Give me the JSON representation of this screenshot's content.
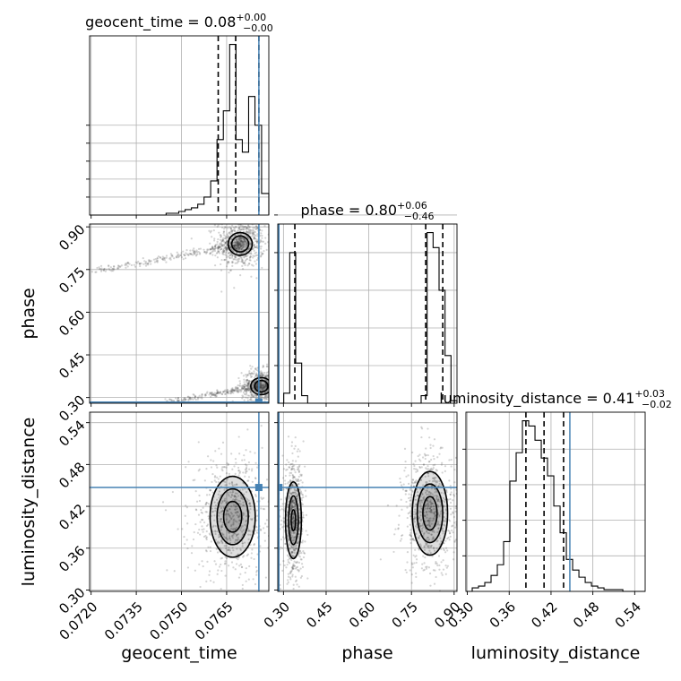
{
  "chart_data": {
    "type": "corner",
    "parameters": [
      {
        "name": "geocent_time",
        "xlabel": "geocent_time",
        "range": [
          0.07195,
          0.0779
        ],
        "ticks": [
          0.072,
          0.0735,
          0.075,
          0.0765
        ],
        "tick_labels": [
          "0.0720",
          "0.0735",
          "0.0750",
          "0.0765"
        ],
        "title_main": "geocent_time = 0.08",
        "title_sup": "+0.00",
        "title_sub": "−0.00",
        "quantiles": [
          0.07622,
          0.0768,
          0.07757
        ],
        "truth": 0.07757,
        "hist_edges": [
          0.07195,
          0.07216,
          0.07237,
          0.07258,
          0.07279,
          0.07301,
          0.07322,
          0.07343,
          0.07364,
          0.07385,
          0.07406,
          0.07427,
          0.07449,
          0.0747,
          0.07491,
          0.07512,
          0.07533,
          0.07554,
          0.07575,
          0.07597,
          0.07618,
          0.07639,
          0.0766,
          0.07681,
          0.07702,
          0.07723,
          0.07744,
          0.07766,
          0.0779
        ],
        "hist_counts": [
          0,
          0,
          0,
          0,
          0,
          0,
          0,
          0,
          0,
          0,
          0,
          0,
          1,
          1,
          2,
          3,
          4,
          6,
          10,
          19,
          42,
          58,
          95,
          42,
          35,
          66,
          50,
          12
        ],
        "hist_ticks": [
          10,
          20,
          30,
          40,
          50
        ]
      },
      {
        "name": "phase",
        "xlabel": "phase",
        "ylabel": "phase",
        "range": [
          0.28,
          0.91
        ],
        "ticks": [
          0.3,
          0.45,
          0.6,
          0.75,
          0.9
        ],
        "tick_labels": [
          "0.30",
          "0.45",
          "0.60",
          "0.75",
          "0.90"
        ],
        "title_main": "phase = 0.80",
        "title_sup": "+0.06",
        "title_sub": "−0.46",
        "quantiles": [
          0.34,
          0.8,
          0.86
        ],
        "truth": 0.284,
        "hist_edges": [
          0.28,
          0.301,
          0.322,
          0.343,
          0.364,
          0.385,
          0.406,
          0.427,
          0.448,
          0.469,
          0.49,
          0.511,
          0.532,
          0.553,
          0.574,
          0.595,
          0.616,
          0.637,
          0.658,
          0.679,
          0.7,
          0.721,
          0.742,
          0.763,
          0.784,
          0.805,
          0.826,
          0.847,
          0.868,
          0.889,
          0.91
        ],
        "hist_counts": [
          0,
          4,
          60,
          16,
          3,
          0,
          0,
          0,
          0,
          0,
          0,
          0,
          0,
          0,
          0,
          0,
          0,
          0,
          0,
          0,
          0,
          0,
          0,
          0,
          3,
          68,
          62,
          45,
          19,
          1
        ],
        "hist_ticks": [
          15,
          30,
          45,
          60,
          75
        ]
      },
      {
        "name": "luminosity_distance",
        "xlabel": "luminosity_distance",
        "ylabel": "luminosity_distance",
        "range": [
          0.298,
          0.555
        ],
        "ticks": [
          0.3,
          0.36,
          0.42,
          0.48,
          0.54
        ],
        "tick_labels": [
          "0.30",
          "0.36",
          "0.42",
          "0.48",
          "0.54"
        ],
        "title_main": "luminosity_distance = 0.41",
        "title_sup": "+0.03",
        "title_sub": "−0.02",
        "quantiles": [
          0.384,
          0.41,
          0.438
        ],
        "truth": 0.447,
        "hist_edges": [
          0.298,
          0.307,
          0.316,
          0.325,
          0.334,
          0.343,
          0.352,
          0.361,
          0.37,
          0.379,
          0.388,
          0.397,
          0.406,
          0.415,
          0.424,
          0.433,
          0.442,
          0.451,
          0.46,
          0.469,
          0.478,
          0.487,
          0.496,
          0.505,
          0.514,
          0.523,
          0.532,
          0.541,
          0.55,
          0.555
        ],
        "hist_counts": [
          0,
          2,
          3,
          5,
          9,
          15,
          28,
          62,
          78,
          96,
          93,
          85,
          75,
          65,
          48,
          33,
          18,
          12,
          8,
          5,
          3,
          2,
          1,
          1,
          1,
          0,
          0,
          0,
          0
        ],
        "hist_ticks": [
          20,
          40,
          60,
          80
        ]
      }
    ],
    "truths": [
      0.07757,
      0.284,
      0.447
    ],
    "panels_2d": [
      {
        "x": "geocent_time",
        "y": "phase",
        "modes": [
          {
            "cx": 0.07695,
            "cy": 0.84,
            "sx": 0.00025,
            "sy": 0.025,
            "tail_to": [
              0.072,
              0.74
            ]
          },
          {
            "cx": 0.07765,
            "cy": 0.34,
            "sx": 0.0002,
            "sy": 0.018,
            "tail_to": [
              0.0745,
              0.285
            ]
          }
        ],
        "contours": [
          {
            "mode": 0,
            "rx": 0.0004,
            "ry": 0.04
          },
          {
            "mode": 0,
            "rx": 0.00028,
            "ry": 0.028
          },
          {
            "mode": 1,
            "rx": 0.00035,
            "ry": 0.03
          },
          {
            "mode": 1,
            "rx": 0.00022,
            "ry": 0.02
          }
        ]
      },
      {
        "x": "geocent_time",
        "y": "luminosity_distance",
        "modes": [
          {
            "cx": 0.0767,
            "cy": 0.405,
            "sx": 0.00045,
            "sy": 0.028
          }
        ],
        "contours": [
          {
            "mode": 0,
            "rx": 0.00075,
            "ry": 0.058
          },
          {
            "mode": 0,
            "rx": 0.00052,
            "ry": 0.04
          },
          {
            "mode": 0,
            "rx": 0.0003,
            "ry": 0.022
          }
        ]
      },
      {
        "x": "phase",
        "y": "luminosity_distance",
        "modes": [
          {
            "cx": 0.335,
            "cy": 0.4,
            "sx": 0.012,
            "sy": 0.025
          },
          {
            "cx": 0.815,
            "cy": 0.41,
            "sx": 0.03,
            "sy": 0.028
          }
        ],
        "contours": [
          {
            "mode": 0,
            "rx": 0.028,
            "ry": 0.055
          },
          {
            "mode": 0,
            "rx": 0.017,
            "ry": 0.035
          },
          {
            "mode": 0,
            "rx": 0.008,
            "ry": 0.015
          },
          {
            "mode": 1,
            "rx": 0.062,
            "ry": 0.06
          },
          {
            "mode": 1,
            "rx": 0.045,
            "ry": 0.042
          },
          {
            "mode": 1,
            "rx": 0.025,
            "ry": 0.024
          }
        ]
      }
    ]
  }
}
